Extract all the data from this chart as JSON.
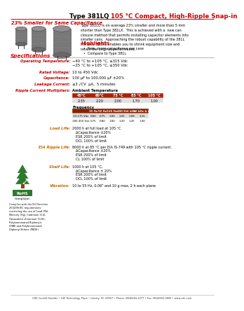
{
  "title_black": "Type 381LQ ",
  "title_red": "105 °C Compact, High-Ripple Snap-in",
  "subtitle": "23% Smaller for Same Capacitance",
  "body_text": "Type 381LQ is on average 23% smaller and more than 5 mm\nshorter than Type 381LX.  This is achieved with a  new can\nclosure method that permits installing capacitor elements into\nsmaller cans.  Approaching the robust capability of the 381L\nthe new 381LQ enables you to shrink equipment size and\nretain the original performance.",
  "highlights_title": "Highlights",
  "highlights": [
    "New, more capacitance per case",
    "Compare to Type 381L"
  ],
  "specs_title": "Specifications",
  "spec_rows": [
    {
      "label": "Operating Temperature:",
      "value": "−40 °C to +105 °C, ≤315 Vdc\n−25 °C to +105 °C, ≥350 Vdc"
    },
    {
      "label": "Rated Voltage:",
      "value": "10 to 450 Vdc"
    },
    {
      "label": "Capacitance:",
      "value": "100 μF to 100,000 μF ±20%"
    },
    {
      "label": "Leakage Current:",
      "value": "≤3 √CV  μA,  5 minutes"
    },
    {
      "label": "Ripple Current Multipliers:",
      "value": "Ambient Temperature"
    }
  ],
  "ambient_headers": [
    "45°C",
    "60°C",
    "75 °C",
    "85 °C",
    "105 °C"
  ],
  "ambient_values": [
    "2.35",
    "2.20",
    "2.00",
    "1.70",
    "1.00"
  ],
  "freq_label": "Frequency",
  "freq_headers": [
    "25 Hz",
    "50 Hz",
    "120 Hz",
    "400 Hz",
    "1 kHz",
    "10 kHz & up"
  ],
  "freq_row1_label": "10-175 Vdc",
  "freq_row1": [
    "0.60",
    "0.75",
    "1.00",
    "1.05",
    "1.08",
    "1.15"
  ],
  "freq_row2_label": "180-450 Vdc",
  "freq_row2": [
    "0.75",
    "0.80",
    "1.00",
    "1.20",
    "1.25",
    "1.40"
  ],
  "load_life_label": "Load Life:",
  "load_life_line1": "2000 h at full load at 105 °C",
  "load_life_lines": [
    "ΔCapacitance ±20%",
    "ESR 200% of limit",
    "DCL 100% of limit"
  ],
  "eia_label": "EIA Ripple Life:",
  "eia_line1": "8000 h at 85 °C per EIA IS-749 with 105 °C ripple current.",
  "eia_lines": [
    "ΔCapacitance ±20%",
    "ESR 200% of limit",
    "CL 100% of limit"
  ],
  "shelf_label": "Shelf Life:",
  "shelf_line1": "1000 h at 105 °C,",
  "shelf_lines": [
    "ΔCapacitance ± 20%",
    "ESR 200% of limit",
    "DCL 100% of limit"
  ],
  "vib_label": "Vibration:",
  "vib_line1": "10 to 55 Hz, 0.06\" and 10 g max, 2 h each plane",
  "footer": "CDE Cornell Dubilier • 140 Technology Place • Liberty, SC 29657 • Phone: (864)843-2277 • Fax: (864)843-3800 • www.cde.com",
  "rohs_text": "Complies with the EU Directive\n2002/95/EC requirements\nrestricting the use of Lead (Pb),\nMercury (Hg), Cadmium (Cd),\nHexavalent chromium (CrVI),\nPolybrominated Biphenyls\n(PBB) and Polybrominated\nDiphenyl Ethers (PBDE).",
  "color_red": "#cc0000",
  "color_black": "#000000",
  "color_orange": "#cc6600",
  "bg_color": "#ffffff",
  "table_header_bg": "#aa2200",
  "table_cell_bg": "#e0e0e0",
  "freq_header_bg": "#882200",
  "freq_cell1_bg": "#dddddd",
  "freq_cell2_bg": "#ffffff"
}
